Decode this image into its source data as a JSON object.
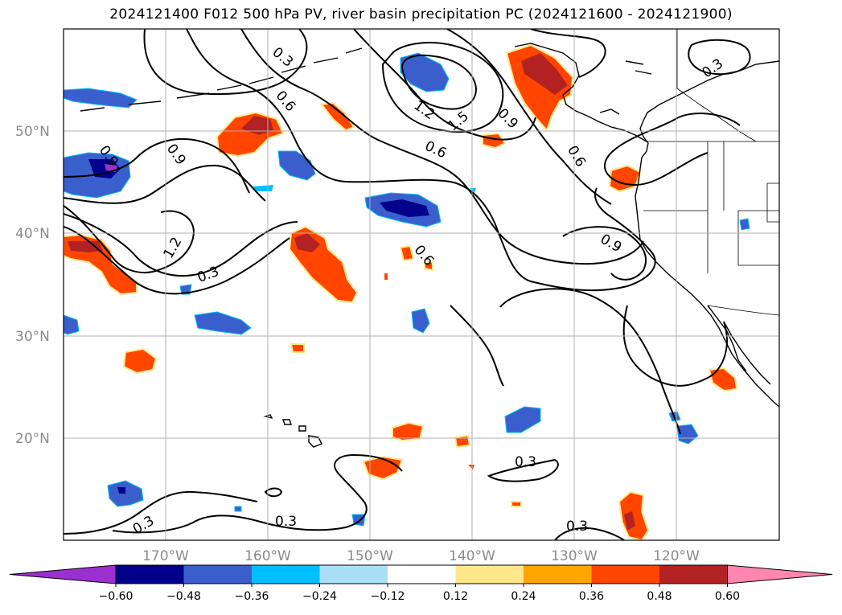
{
  "title": "2024121400 F012 500 hPa PV, river basin precipitation PC (2024121600 - 2024121900)",
  "map": {
    "lon_range": [
      -180,
      -110
    ],
    "lat_range": [
      10,
      60
    ],
    "lat_ticks": [
      "50°N",
      "40°N",
      "30°N",
      "20°N"
    ],
    "lon_ticks": [
      "170°W",
      "160°W",
      "150°W",
      "140°W",
      "130°W",
      "120°W"
    ],
    "gridlines": true
  },
  "contour_labels": [
    "0.3",
    "0.6",
    "0.9",
    "1.2",
    "1.5",
    "0.9",
    "0.6",
    "0.9",
    "1.2",
    "0.3",
    "0.6",
    "0.9",
    "0.6",
    "0.3",
    "0.3",
    "0.3",
    "0.3",
    "0.3"
  ],
  "colorbar": {
    "tick_labels": [
      "−0.60",
      "−0.48",
      "−0.36",
      "−0.24",
      "−0.12",
      "0.12",
      "0.24",
      "0.36",
      "0.48",
      "0.60"
    ],
    "colors": [
      "#9b30d0",
      "#00008b",
      "#3a5fcd",
      "#00bfff",
      "#aadff7",
      "#ffffff",
      "#ffe88a",
      "#ffa500",
      "#ff4500",
      "#b22222",
      "#ff86b0"
    ]
  },
  "palette": {
    "neg_strong": "#00008b",
    "neg_mid": "#3a5fcd",
    "neg_light": "#00bfff",
    "pos_light": "#ffe88a",
    "pos_mid": "#ff4500",
    "pos_strong": "#b22222",
    "pos_extreme": "#ff86b0"
  }
}
